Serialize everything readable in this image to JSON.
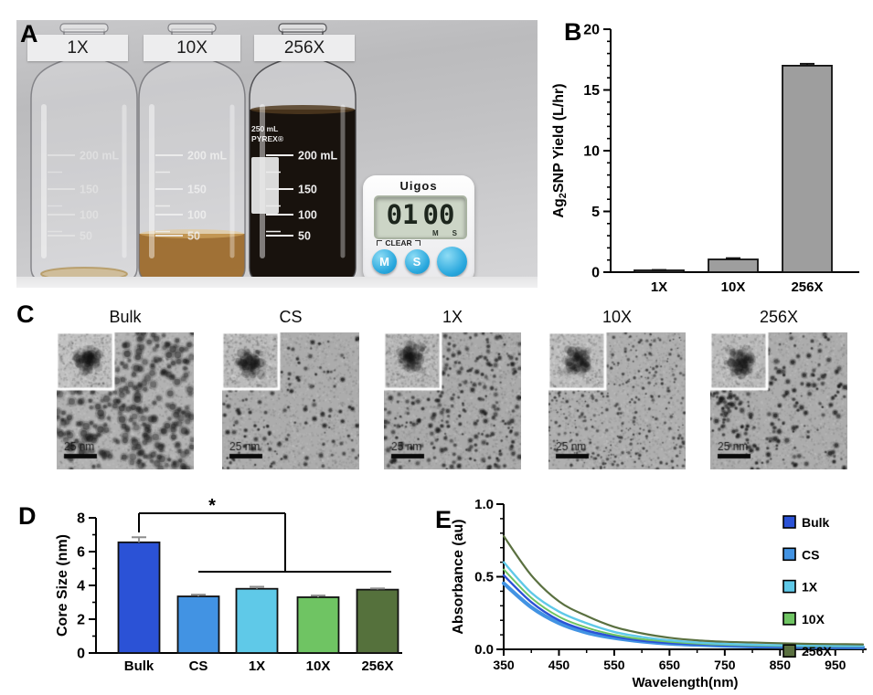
{
  "panels": {
    "a": {
      "label": "A",
      "bottle_labels": [
        "1X",
        "10X",
        "256X"
      ],
      "graduations": [
        "200 mL",
        "150",
        "100",
        "50"
      ],
      "bottle3_side_text": [
        "250 mL",
        "PYREX®"
      ],
      "timer": {
        "brand": "Uigos",
        "minutes": "01",
        "seconds": "00",
        "m_unit": "M",
        "s_unit": "S",
        "clear_label": "CLEAR",
        "button_m": "M",
        "button_s": "S"
      }
    },
    "b": {
      "label": "B"
    },
    "c": {
      "label": "C",
      "scale_bar_label": "25 nm",
      "images": [
        {
          "label": "Bulk",
          "seed": 11,
          "bg": 178,
          "count": 300,
          "rmin": 3.0,
          "rmax": 6.2,
          "alpha": 0.42,
          "cluster": false
        },
        {
          "label": "CS",
          "seed": 22,
          "bg": 172,
          "count": 160,
          "rmin": 1.2,
          "rmax": 3.4,
          "alpha": 0.6,
          "cluster": false
        },
        {
          "label": "1X",
          "seed": 33,
          "bg": 170,
          "count": 300,
          "rmin": 1.4,
          "rmax": 3.6,
          "alpha": 0.55,
          "cluster": false
        },
        {
          "label": "10X",
          "seed": 44,
          "bg": 175,
          "count": 380,
          "rmin": 0.8,
          "rmax": 2.4,
          "alpha": 0.5,
          "cluster": false
        },
        {
          "label": "256X",
          "seed": 55,
          "bg": 172,
          "count": 260,
          "rmin": 1.4,
          "rmax": 4.0,
          "alpha": 0.6,
          "cluster": true
        }
      ]
    },
    "d": {
      "label": "D"
    },
    "e": {
      "label": "E"
    }
  },
  "chart_data": [
    {
      "panel": "B",
      "type": "bar",
      "categories": [
        "1X",
        "10X",
        "256X"
      ],
      "values": [
        0.15,
        1.05,
        17.0
      ],
      "errors": [
        0.03,
        0.1,
        0.15
      ],
      "ylabel": "Ag2SNP Yield (L/hr)",
      "ylabel_parts": [
        "Ag",
        "2",
        "SNP Yield (L/hr)"
      ],
      "ylim": [
        0,
        20
      ],
      "yticks": [
        0,
        5,
        10,
        15,
        20
      ],
      "minor_step": 1,
      "bar_color": "#9e9e9e",
      "bar_edge": "#111111",
      "grid": false
    },
    {
      "panel": "D",
      "type": "bar",
      "categories": [
        "Bulk",
        "CS",
        "1X",
        "10X",
        "256X"
      ],
      "values": [
        6.55,
        3.35,
        3.8,
        3.3,
        3.75
      ],
      "errors": [
        0.3,
        0.1,
        0.12,
        0.1,
        0.07
      ],
      "colors": [
        "#2b52d6",
        "#4293e3",
        "#5fc9e8",
        "#6fc463",
        "#55713c"
      ],
      "ylabel": "Core Size (nm)",
      "ylim": [
        0,
        8
      ],
      "yticks": [
        0,
        2,
        4,
        6,
        8
      ],
      "minor_step": 1,
      "bar_edge": "#111111",
      "grid": false,
      "significance": {
        "symbol": "*",
        "compare_from": "Bulk",
        "compare_to": [
          "CS",
          "1X",
          "10X",
          "256X"
        ]
      }
    },
    {
      "panel": "E",
      "type": "line",
      "xlabel": "Wavelength(nm)",
      "ylabel": "Absorbance (au)",
      "xlim": [
        350,
        1000
      ],
      "ylim": [
        0,
        1.0
      ],
      "xticks": [
        350,
        450,
        550,
        650,
        750,
        850,
        950
      ],
      "yticks": [
        "0.0",
        "0.5",
        "1.0"
      ],
      "grid": false,
      "legend_position": "right",
      "legend": [
        "Bulk",
        "CS",
        "1X",
        "10X",
        "256X"
      ],
      "x": [
        350,
        400,
        450,
        500,
        550,
        600,
        650,
        700,
        750,
        800,
        850,
        900,
        950,
        1000
      ],
      "series": [
        {
          "name": "Bulk",
          "color": "#2b52d6",
          "values": [
            0.51,
            0.325,
            0.2,
            0.13,
            0.088,
            0.06,
            0.044,
            0.034,
            0.027,
            0.022,
            0.019,
            0.017,
            0.016,
            0.015
          ]
        },
        {
          "name": "CS",
          "color": "#4293e3",
          "values": [
            0.455,
            0.29,
            0.18,
            0.115,
            0.078,
            0.054,
            0.039,
            0.03,
            0.024,
            0.02,
            0.018,
            0.016,
            0.015,
            0.014
          ]
        },
        {
          "name": "1X",
          "color": "#5fc9e8",
          "values": [
            0.6,
            0.39,
            0.26,
            0.18,
            0.12,
            0.085,
            0.062,
            0.047,
            0.038,
            0.032,
            0.028,
            0.026,
            0.024,
            0.023
          ]
        },
        {
          "name": "10X",
          "color": "#6fc463",
          "values": [
            0.55,
            0.355,
            0.225,
            0.15,
            0.1,
            0.07,
            0.052,
            0.04,
            0.032,
            0.027,
            0.024,
            0.022,
            0.021,
            0.02
          ]
        },
        {
          "name": "256X",
          "color": "#5a7040",
          "values": [
            0.78,
            0.51,
            0.33,
            0.23,
            0.155,
            0.11,
            0.08,
            0.062,
            0.052,
            0.047,
            0.042,
            0.038,
            0.036,
            0.034
          ]
        }
      ]
    }
  ]
}
